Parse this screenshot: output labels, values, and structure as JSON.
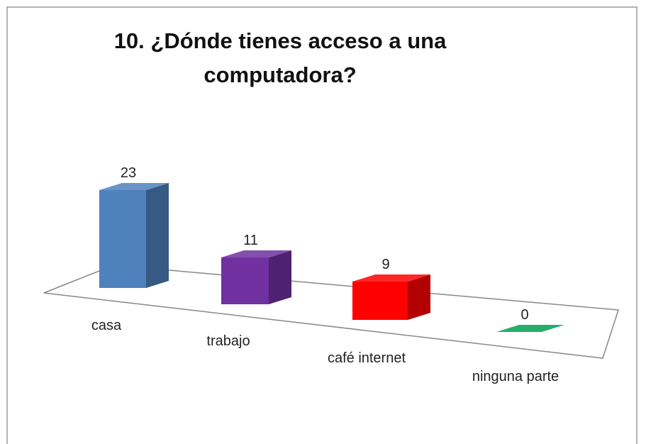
{
  "chart_data": {
    "type": "bar3d",
    "title": "10. ¿Dónde tienes acceso a una computadora?",
    "categories": [
      "casa",
      "trabajo",
      "café internet",
      "ninguna parte"
    ],
    "values": [
      23,
      11,
      9,
      0
    ],
    "colors": [
      "#4f81bd",
      "#7030a0",
      "#ff0000",
      "#00a050"
    ]
  }
}
